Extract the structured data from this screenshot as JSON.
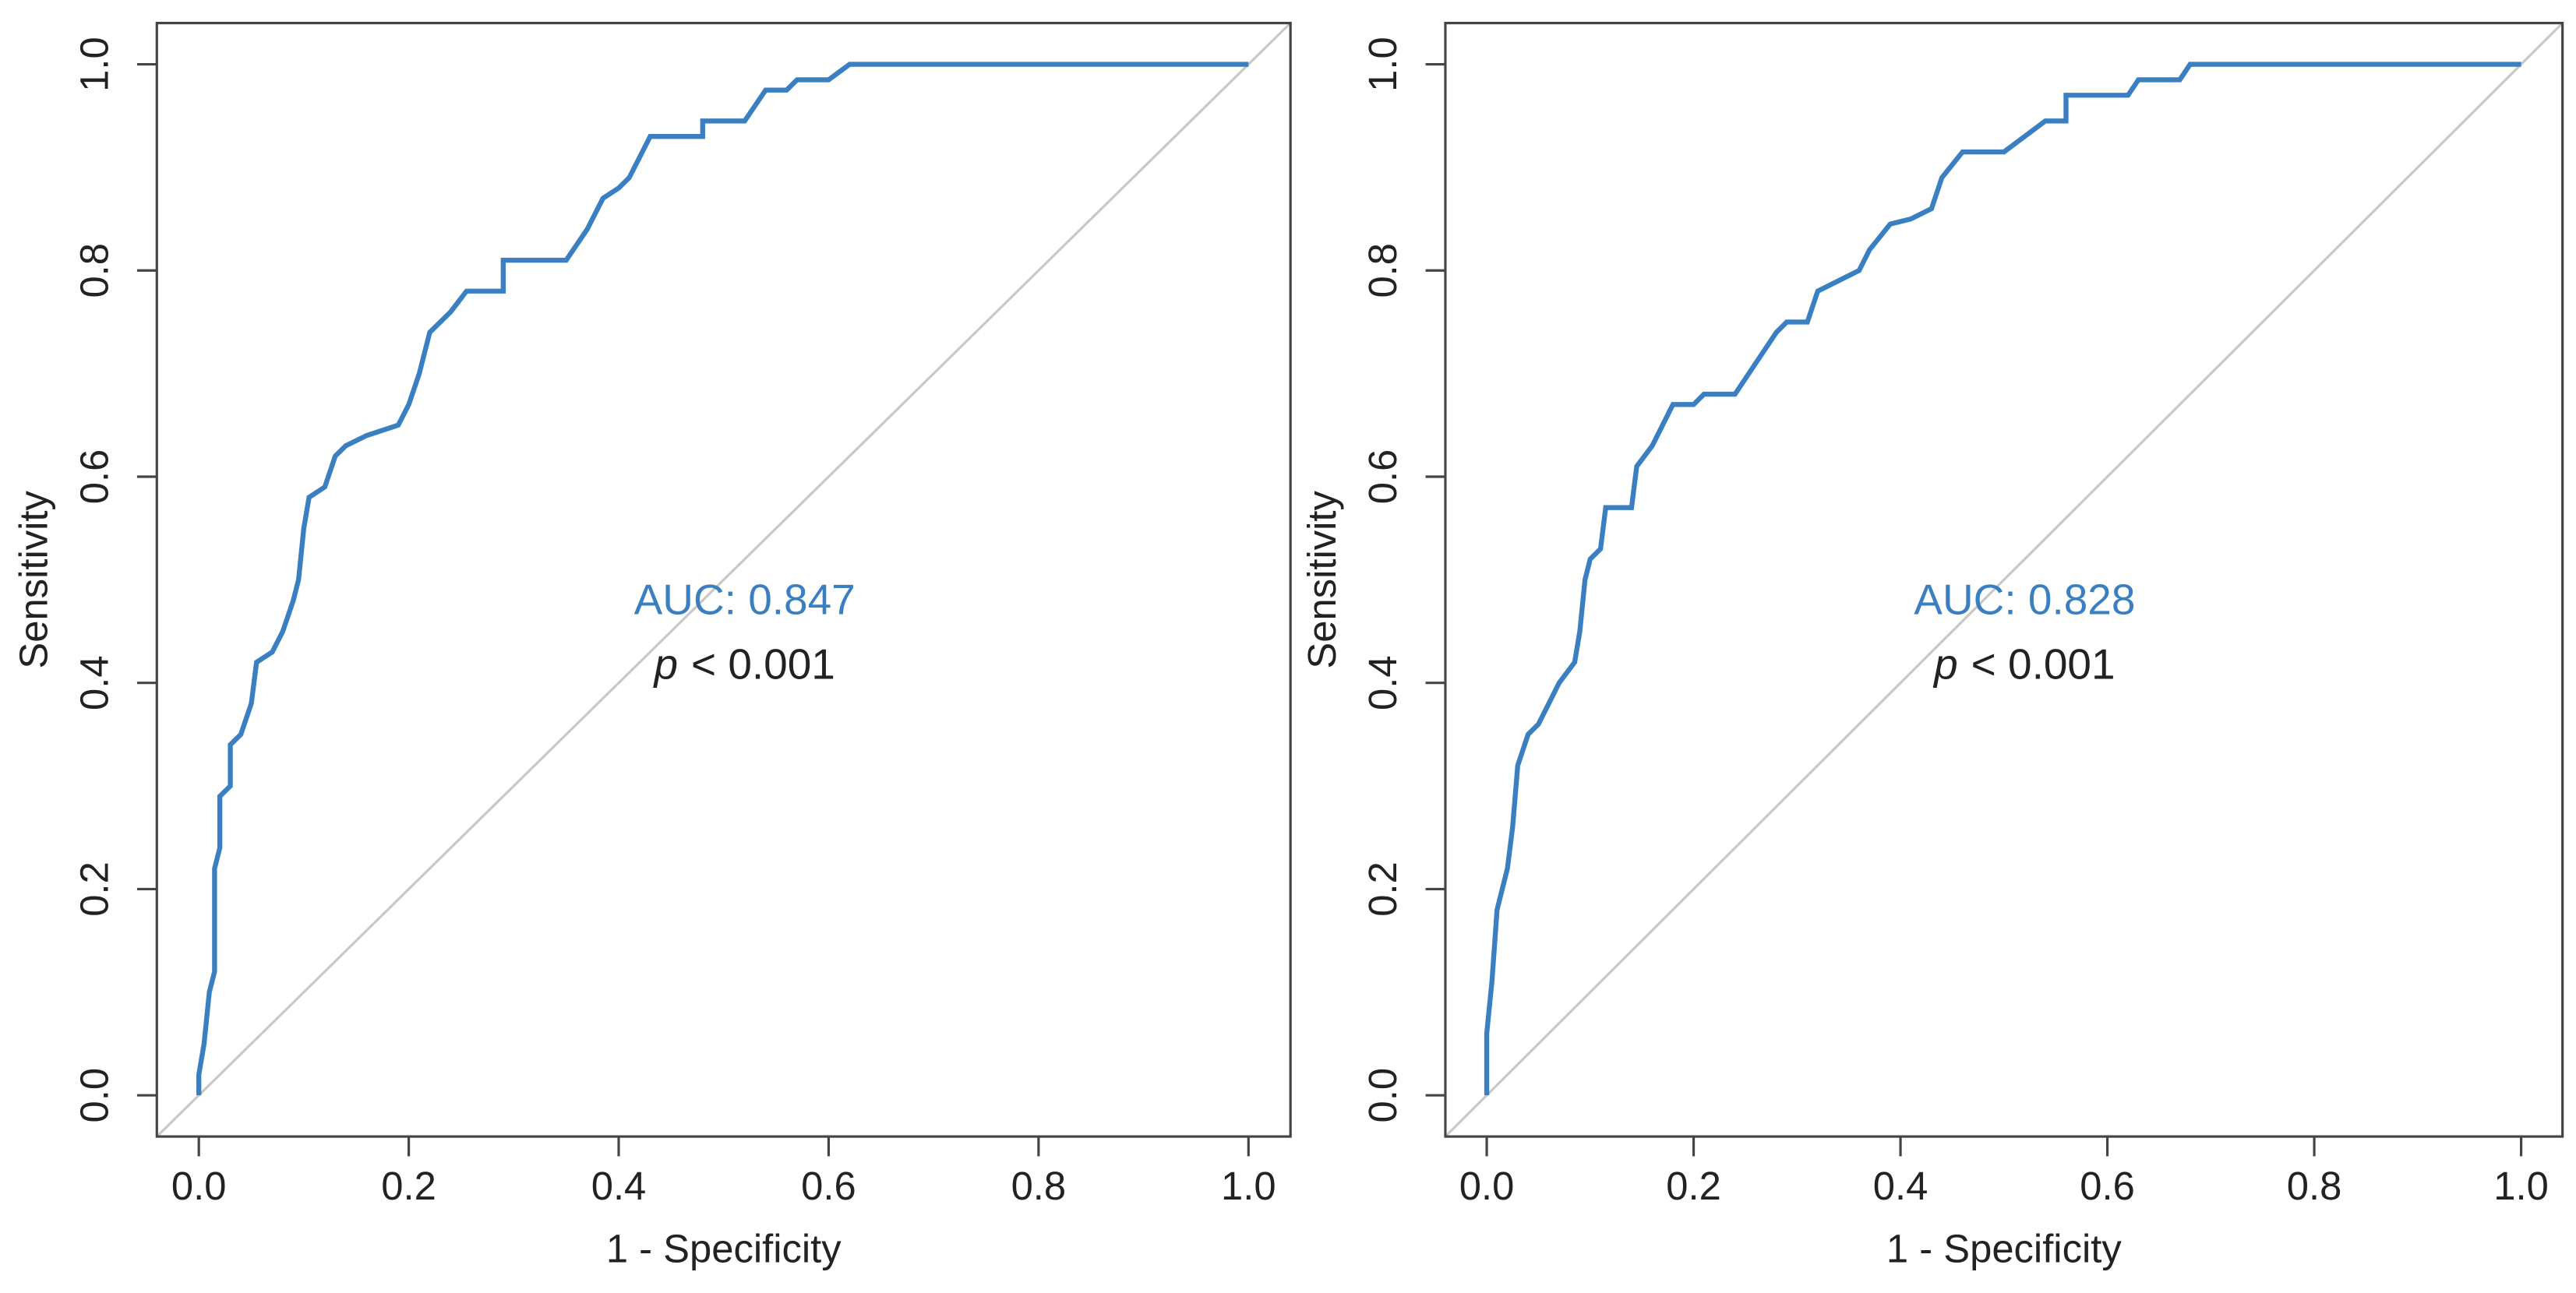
{
  "chart_data": [
    {
      "type": "line",
      "color": "#3a7fc1",
      "x_label": "1 - Specificity",
      "y_label": "Sensitivity",
      "auc": "AUC: 0.847",
      "p_symbol": "p",
      "p_text": "< 0.001",
      "xlim": [
        -0.04,
        1.04
      ],
      "ylim": [
        -0.04,
        1.04
      ],
      "xticks": [
        {
          "value": 0,
          "label": "0.0"
        },
        0.2,
        0.4,
        0.6,
        0.8,
        {
          "value": 1,
          "label": "1.0"
        }
      ],
      "yticks": [
        {
          "value": 0,
          "label": "0.0"
        },
        0.2,
        0.4,
        0.6,
        0.8,
        {
          "value": 1,
          "label": "1.0"
        }
      ],
      "x": [
        0,
        0,
        0.005,
        0.01,
        0.015,
        0.015,
        0.02,
        0.02,
        0.03,
        0.03,
        0.04,
        0.05,
        0.055,
        0.07,
        0.08,
        0.09,
        0.095,
        0.1,
        0.105,
        0.12,
        0.13,
        0.14,
        0.16,
        0.19,
        0.2,
        0.21,
        0.22,
        0.24,
        0.255,
        0.29,
        0.29,
        0.35,
        0.37,
        0.385,
        0.4,
        0.41,
        0.42,
        0.43,
        0.48,
        0.48,
        0.52,
        0.53,
        0.54,
        0.56,
        0.57,
        0.6,
        0.62,
        1.0
      ],
      "values": [
        0,
        0.02,
        0.05,
        0.1,
        0.12,
        0.22,
        0.24,
        0.29,
        0.3,
        0.34,
        0.35,
        0.38,
        0.42,
        0.43,
        0.45,
        0.48,
        0.5,
        0.55,
        0.58,
        0.59,
        0.62,
        0.63,
        0.64,
        0.65,
        0.67,
        0.7,
        0.74,
        0.76,
        0.78,
        0.78,
        0.81,
        0.81,
        0.84,
        0.87,
        0.88,
        0.89,
        0.91,
        0.93,
        0.93,
        0.945,
        0.945,
        0.96,
        0.975,
        0.975,
        0.985,
        0.985,
        1.0,
        1.0
      ]
    },
    {
      "type": "line",
      "color": "#3a7fc1",
      "x_label": "1 - Specificity",
      "y_label": "Sensitivity",
      "auc": "AUC: 0.828",
      "p_symbol": "p",
      "p_text": "< 0.001",
      "xlim": [
        -0.04,
        1.04
      ],
      "ylim": [
        -0.04,
        1.04
      ],
      "xticks": [
        {
          "value": 0,
          "label": "0.0"
        },
        0.2,
        0.4,
        0.6,
        0.8,
        {
          "value": 1,
          "label": "1.0"
        }
      ],
      "yticks": [
        {
          "value": 0,
          "label": "0.0"
        },
        0.2,
        0.4,
        0.6,
        0.8,
        {
          "value": 1,
          "label": "1.0"
        }
      ],
      "x": [
        0,
        0,
        0.005,
        0.01,
        0.02,
        0.025,
        0.03,
        0.04,
        0.05,
        0.06,
        0.07,
        0.085,
        0.09,
        0.095,
        0.1,
        0.11,
        0.115,
        0.14,
        0.145,
        0.16,
        0.17,
        0.18,
        0.2,
        0.21,
        0.24,
        0.26,
        0.28,
        0.29,
        0.31,
        0.32,
        0.34,
        0.36,
        0.37,
        0.39,
        0.41,
        0.43,
        0.44,
        0.46,
        0.5,
        0.52,
        0.54,
        0.56,
        0.56,
        0.62,
        0.63,
        0.67,
        0.68,
        1.0
      ],
      "values": [
        0,
        0.06,
        0.11,
        0.18,
        0.22,
        0.26,
        0.32,
        0.35,
        0.36,
        0.38,
        0.4,
        0.42,
        0.45,
        0.5,
        0.52,
        0.53,
        0.57,
        0.57,
        0.61,
        0.63,
        0.65,
        0.67,
        0.67,
        0.68,
        0.68,
        0.71,
        0.74,
        0.75,
        0.75,
        0.78,
        0.79,
        0.8,
        0.82,
        0.845,
        0.85,
        0.86,
        0.89,
        0.915,
        0.915,
        0.93,
        0.945,
        0.945,
        0.97,
        0.97,
        0.985,
        0.985,
        1.0,
        1.0
      ]
    }
  ]
}
